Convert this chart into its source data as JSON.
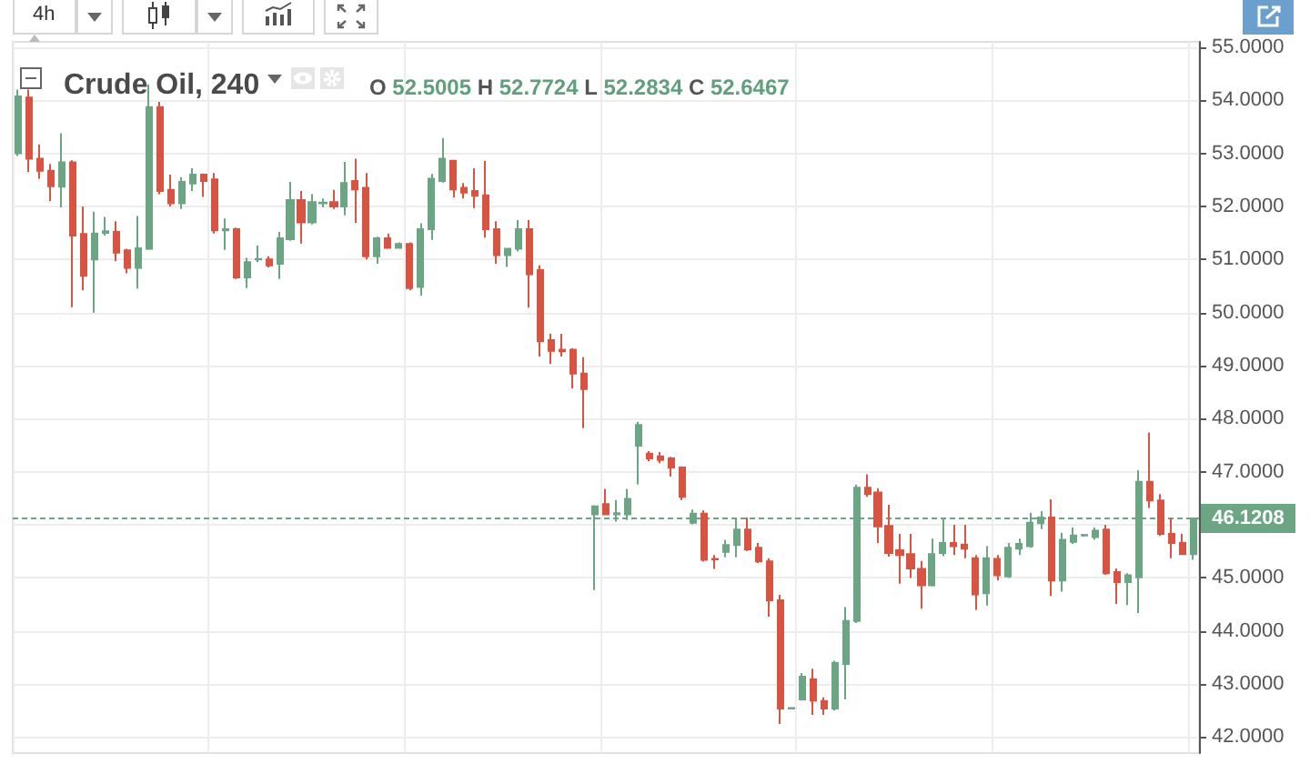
{
  "chart_data": {
    "type": "candlestick",
    "title": "Crude Oil, 240",
    "subtitle": "O 52.5005 H 52.7724 L 52.2834 C 52.6467",
    "annotations": [
      "4h"
    ],
    "categories": [
      null,
      null,
      null,
      null,
      null,
      null,
      null,
      null,
      null,
      null,
      null,
      null,
      null,
      null,
      null,
      null,
      null,
      null,
      null,
      null,
      null,
      null,
      null,
      null,
      null,
      null,
      null,
      null,
      null,
      null,
      null,
      null,
      null,
      null,
      null,
      null,
      null,
      null,
      null,
      null,
      null,
      null,
      null,
      null,
      null,
      null,
      null,
      null,
      null,
      null,
      null,
      null,
      null,
      null,
      null,
      null,
      null,
      null,
      null,
      null,
      null,
      null,
      null,
      null,
      null,
      null,
      null,
      null,
      null,
      null,
      null,
      null,
      null,
      null,
      null,
      null,
      null,
      null,
      null,
      null,
      null,
      null,
      null,
      null,
      null,
      null,
      null,
      null,
      null,
      null,
      null,
      null,
      null,
      null,
      null,
      null,
      null,
      null,
      null,
      null,
      null,
      null,
      null,
      null,
      null,
      null,
      null,
      null,
      null
    ],
    "ohlc": [
      [
        53.0,
        54.2,
        52.95,
        54.07
      ],
      [
        54.05,
        54.2,
        52.65,
        52.9
      ],
      [
        52.9,
        53.17,
        52.52,
        52.67
      ],
      [
        52.67,
        52.8,
        52.1,
        52.38
      ],
      [
        52.37,
        53.38,
        51.98,
        52.83
      ],
      [
        52.83,
        52.87,
        50.1,
        51.45
      ],
      [
        51.48,
        52.0,
        50.42,
        50.69
      ],
      [
        51.0,
        51.9,
        50.0,
        51.49
      ],
      [
        51.5,
        51.8,
        51.45,
        51.53
      ],
      [
        51.52,
        51.72,
        50.97,
        51.13
      ],
      [
        51.17,
        51.2,
        50.74,
        50.84
      ],
      [
        50.84,
        51.82,
        50.45,
        51.21
      ],
      [
        51.2,
        54.3,
        51.18,
        53.87
      ],
      [
        53.87,
        53.97,
        52.23,
        52.29
      ],
      [
        52.31,
        52.6,
        52.0,
        52.06
      ],
      [
        52.06,
        52.55,
        51.95,
        52.46
      ],
      [
        52.43,
        52.72,
        52.29,
        52.6
      ],
      [
        52.6,
        52.62,
        52.18,
        52.48
      ],
      [
        52.51,
        52.63,
        51.49,
        51.55
      ],
      [
        51.55,
        51.77,
        51.18,
        51.57
      ],
      [
        51.57,
        51.6,
        50.63,
        50.66
      ],
      [
        50.66,
        51.03,
        50.46,
        50.95
      ],
      [
        51.0,
        51.26,
        50.95,
        51.01
      ],
      [
        51.0,
        51.06,
        50.85,
        50.89
      ],
      [
        50.92,
        51.52,
        50.63,
        51.4
      ],
      [
        51.38,
        52.46,
        51.35,
        52.12
      ],
      [
        52.12,
        52.29,
        51.3,
        51.7
      ],
      [
        51.7,
        52.23,
        51.66,
        52.08
      ],
      [
        52.06,
        52.15,
        51.98,
        52.07
      ],
      [
        52.08,
        52.31,
        51.95,
        52.0
      ],
      [
        52.0,
        52.84,
        51.83,
        52.44
      ],
      [
        52.48,
        52.9,
        51.69,
        52.32
      ],
      [
        52.35,
        52.63,
        51.0,
        51.06
      ],
      [
        51.06,
        51.43,
        50.92,
        51.4
      ],
      [
        51.4,
        51.49,
        51.2,
        51.22
      ],
      [
        51.22,
        51.32,
        51.2,
        51.29
      ],
      [
        51.29,
        51.32,
        50.42,
        50.46
      ],
      [
        50.48,
        51.68,
        50.32,
        51.57
      ],
      [
        51.57,
        52.61,
        51.37,
        52.52
      ],
      [
        52.48,
        53.29,
        52.45,
        52.9
      ],
      [
        52.86,
        52.87,
        52.17,
        52.32
      ],
      [
        52.35,
        52.44,
        52.15,
        52.26
      ],
      [
        52.29,
        52.72,
        51.97,
        52.2
      ],
      [
        52.21,
        52.86,
        51.41,
        51.57
      ],
      [
        51.57,
        51.72,
        50.92,
        51.08
      ],
      [
        51.08,
        51.22,
        50.86,
        51.2
      ],
      [
        51.2,
        51.74,
        51.15,
        51.57
      ],
      [
        51.57,
        51.74,
        50.09,
        50.72
      ],
      [
        50.8,
        50.89,
        49.17,
        49.46
      ],
      [
        49.48,
        49.6,
        49.03,
        49.28
      ],
      [
        49.3,
        49.6,
        49.17,
        49.27
      ],
      [
        49.3,
        49.33,
        48.57,
        48.85
      ],
      [
        48.85,
        49.16,
        47.82,
        48.56
      ],
      [
        46.2,
        46.37,
        44.77,
        46.35
      ],
      [
        46.39,
        46.68,
        46.18,
        46.2
      ],
      [
        46.2,
        46.47,
        46.06,
        46.22
      ],
      [
        46.2,
        46.68,
        46.09,
        46.49
      ],
      [
        47.49,
        47.94,
        46.76,
        47.88
      ],
      [
        47.34,
        47.39,
        47.2,
        47.25
      ],
      [
        47.29,
        47.37,
        47.16,
        47.22
      ],
      [
        47.25,
        47.28,
        46.91,
        47.08
      ],
      [
        47.08,
        47.1,
        46.47,
        46.53
      ],
      [
        46.04,
        46.29,
        46.01,
        46.21
      ],
      [
        46.21,
        46.27,
        45.31,
        45.34
      ],
      [
        45.36,
        45.43,
        45.17,
        45.35
      ],
      [
        45.49,
        45.72,
        45.39,
        45.62
      ],
      [
        45.62,
        46.12,
        45.39,
        45.91
      ],
      [
        45.91,
        46.14,
        45.51,
        45.54
      ],
      [
        45.57,
        45.66,
        45.28,
        45.31
      ],
      [
        45.31,
        45.37,
        44.27,
        44.58
      ],
      [
        44.58,
        44.68,
        42.25,
        42.54
      ],
      [
        42.54,
        42.56,
        42.53,
        42.55
      ],
      [
        42.71,
        43.21,
        42.69,
        43.14
      ],
      [
        43.09,
        43.29,
        42.42,
        42.69
      ],
      [
        42.68,
        42.75,
        42.42,
        42.54
      ],
      [
        42.54,
        43.44,
        42.5,
        43.4
      ],
      [
        43.38,
        44.45,
        42.71,
        44.19
      ],
      [
        44.19,
        46.76,
        44.15,
        46.7
      ],
      [
        46.7,
        46.95,
        46.53,
        46.58
      ],
      [
        46.61,
        46.69,
        45.66,
        45.97
      ],
      [
        45.98,
        46.38,
        45.4,
        45.47
      ],
      [
        45.52,
        45.83,
        44.89,
        45.43
      ],
      [
        45.45,
        45.83,
        45.0,
        45.18
      ],
      [
        45.17,
        45.32,
        44.42,
        44.86
      ],
      [
        44.86,
        45.74,
        44.84,
        45.45
      ],
      [
        45.47,
        46.12,
        45.41,
        45.66
      ],
      [
        45.66,
        46.0,
        45.43,
        45.6
      ],
      [
        45.63,
        46.0,
        45.37,
        45.55
      ],
      [
        45.37,
        45.43,
        44.4,
        44.69
      ],
      [
        44.71,
        45.6,
        44.48,
        45.37
      ],
      [
        45.36,
        45.43,
        44.95,
        45.05
      ],
      [
        45.03,
        45.66,
        45.0,
        45.57
      ],
      [
        45.55,
        45.74,
        45.43,
        45.64
      ],
      [
        45.6,
        46.23,
        45.57,
        46.04
      ],
      [
        46.03,
        46.26,
        45.92,
        46.14
      ],
      [
        46.14,
        46.48,
        44.66,
        44.95
      ],
      [
        44.95,
        45.85,
        44.74,
        45.72
      ],
      [
        45.68,
        45.95,
        45.64,
        45.8
      ],
      [
        45.8,
        45.83,
        45.78,
        45.81
      ],
      [
        45.77,
        45.95,
        45.72,
        45.89
      ],
      [
        45.91,
        46.0,
        45.06,
        45.09
      ],
      [
        45.11,
        45.18,
        44.51,
        44.92
      ],
      [
        44.92,
        45.09,
        44.49,
        45.05
      ],
      [
        45.01,
        47.03,
        44.34,
        46.81
      ],
      [
        46.81,
        47.74,
        46.32,
        46.46
      ],
      [
        46.46,
        46.58,
        45.79,
        45.83
      ],
      [
        45.83,
        46.12,
        45.37,
        45.66
      ],
      [
        45.66,
        45.83,
        45.43,
        45.45
      ],
      [
        45.45,
        46.14,
        45.34,
        46.12
      ]
    ],
    "colors": [
      "#6ba583",
      "#d75442",
      "#d75442",
      "#d75442",
      "#6ba583",
      "#d75442",
      "#d75442",
      "#6ba583",
      "#6ba583",
      "#d75442",
      "#d75442",
      "#6ba583",
      "#6ba583",
      "#d75442",
      "#d75442",
      "#6ba583",
      "#6ba583",
      "#d75442",
      "#d75442",
      "#6ba583",
      "#d75442",
      "#6ba583",
      "#6ba583",
      "#d75442",
      "#6ba583",
      "#6ba583",
      "#d75442",
      "#6ba583",
      "#6ba583",
      "#d75442",
      "#6ba583",
      "#d75442",
      "#d75442",
      "#6ba583",
      "#d75442",
      "#6ba583",
      "#d75442",
      "#6ba583",
      "#6ba583",
      "#6ba583",
      "#d75442",
      "#d75442",
      "#d75442",
      "#d75442",
      "#d75442",
      "#6ba583",
      "#6ba583",
      "#d75442",
      "#d75442",
      "#d75442",
      "#d75442",
      "#d75442",
      "#d75442",
      "#6ba583",
      "#d75442",
      "#6ba583",
      "#6ba583",
      "#6ba583",
      "#d75442",
      "#d75442",
      "#d75442",
      "#d75442",
      "#6ba583",
      "#d75442",
      "#d75442",
      "#6ba583",
      "#6ba583",
      "#d75442",
      "#d75442",
      "#d75442",
      "#d75442",
      "#6ba583",
      "#6ba583",
      "#d75442",
      "#d75442",
      "#6ba583",
      "#6ba583",
      "#6ba583",
      "#d75442",
      "#d75442",
      "#d75442",
      "#d75442",
      "#d75442",
      "#d75442",
      "#6ba583",
      "#6ba583",
      "#d75442",
      "#d75442",
      "#d75442",
      "#6ba583",
      "#d75442",
      "#6ba583",
      "#6ba583",
      "#6ba583",
      "#6ba583",
      "#d75442",
      "#6ba583",
      "#6ba583",
      "#6ba583",
      "#6ba583",
      "#d75442",
      "#d75442",
      "#6ba583",
      "#6ba583",
      "#d75442",
      "#d75442",
      "#d75442",
      "#d75442",
      "#6ba583"
    ],
    "ylim": [
      41.7,
      55.1
    ],
    "yticks": [
      {
        "value": 42,
        "label": "42.0000"
      },
      {
        "value": 43,
        "label": "43.0000"
      },
      {
        "value": 44,
        "label": "44.0000"
      },
      {
        "value": 45,
        "label": "45.0000"
      },
      {
        "value": 46,
        "label": null
      },
      {
        "value": 47,
        "label": "47.0000"
      },
      {
        "value": 48,
        "label": "48.0000"
      },
      {
        "value": 49,
        "label": "49.0000"
      },
      {
        "value": 50,
        "label": "50.0000"
      },
      {
        "value": 51,
        "label": "51.0000"
      },
      {
        "value": 52,
        "label": "52.0000"
      },
      {
        "value": 53,
        "label": "53.0000"
      },
      {
        "value": 54,
        "label": "54.0000"
      },
      {
        "value": 55,
        "label": "55.0000"
      }
    ],
    "ref_lines": [
      {
        "axis": "y",
        "value": 46.1208,
        "label": "46.1208",
        "color": "#6ba583",
        "line_style": "dashed"
      }
    ],
    "grid": true,
    "tick_labels": "y"
  }
}
